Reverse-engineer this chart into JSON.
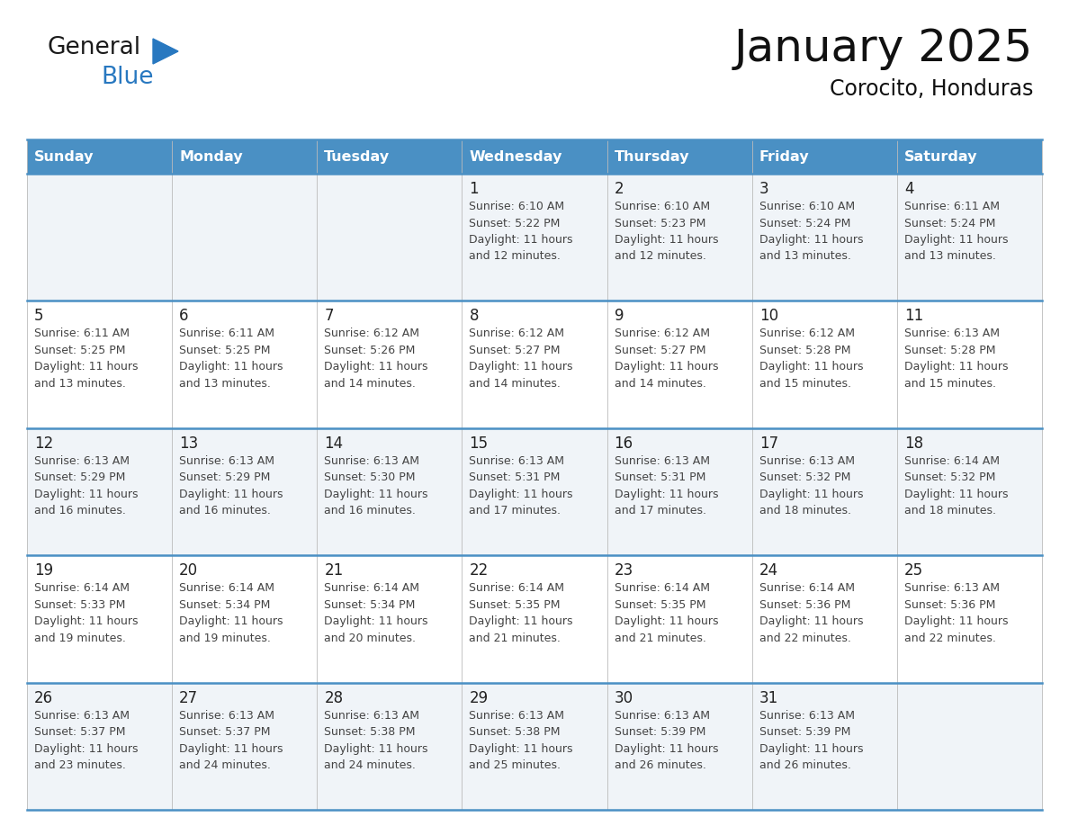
{
  "title": "January 2025",
  "subtitle": "Corocito, Honduras",
  "days_of_week": [
    "Sunday",
    "Monday",
    "Tuesday",
    "Wednesday",
    "Thursday",
    "Friday",
    "Saturday"
  ],
  "header_bg": "#4a90c4",
  "header_text": "#ffffff",
  "cell_bg_odd": "#f0f4f8",
  "cell_bg_even": "#ffffff",
  "border_color": "#4a90c4",
  "text_color": "#444444",
  "day_num_color": "#222222",
  "title_color": "#111111",
  "subtitle_color": "#111111",
  "weeks": [
    [
      {
        "day": null,
        "info": null
      },
      {
        "day": null,
        "info": null
      },
      {
        "day": null,
        "info": null
      },
      {
        "day": 1,
        "info": "Sunrise: 6:10 AM\nSunset: 5:22 PM\nDaylight: 11 hours\nand 12 minutes."
      },
      {
        "day": 2,
        "info": "Sunrise: 6:10 AM\nSunset: 5:23 PM\nDaylight: 11 hours\nand 12 minutes."
      },
      {
        "day": 3,
        "info": "Sunrise: 6:10 AM\nSunset: 5:24 PM\nDaylight: 11 hours\nand 13 minutes."
      },
      {
        "day": 4,
        "info": "Sunrise: 6:11 AM\nSunset: 5:24 PM\nDaylight: 11 hours\nand 13 minutes."
      }
    ],
    [
      {
        "day": 5,
        "info": "Sunrise: 6:11 AM\nSunset: 5:25 PM\nDaylight: 11 hours\nand 13 minutes."
      },
      {
        "day": 6,
        "info": "Sunrise: 6:11 AM\nSunset: 5:25 PM\nDaylight: 11 hours\nand 13 minutes."
      },
      {
        "day": 7,
        "info": "Sunrise: 6:12 AM\nSunset: 5:26 PM\nDaylight: 11 hours\nand 14 minutes."
      },
      {
        "day": 8,
        "info": "Sunrise: 6:12 AM\nSunset: 5:27 PM\nDaylight: 11 hours\nand 14 minutes."
      },
      {
        "day": 9,
        "info": "Sunrise: 6:12 AM\nSunset: 5:27 PM\nDaylight: 11 hours\nand 14 minutes."
      },
      {
        "day": 10,
        "info": "Sunrise: 6:12 AM\nSunset: 5:28 PM\nDaylight: 11 hours\nand 15 minutes."
      },
      {
        "day": 11,
        "info": "Sunrise: 6:13 AM\nSunset: 5:28 PM\nDaylight: 11 hours\nand 15 minutes."
      }
    ],
    [
      {
        "day": 12,
        "info": "Sunrise: 6:13 AM\nSunset: 5:29 PM\nDaylight: 11 hours\nand 16 minutes."
      },
      {
        "day": 13,
        "info": "Sunrise: 6:13 AM\nSunset: 5:29 PM\nDaylight: 11 hours\nand 16 minutes."
      },
      {
        "day": 14,
        "info": "Sunrise: 6:13 AM\nSunset: 5:30 PM\nDaylight: 11 hours\nand 16 minutes."
      },
      {
        "day": 15,
        "info": "Sunrise: 6:13 AM\nSunset: 5:31 PM\nDaylight: 11 hours\nand 17 minutes."
      },
      {
        "day": 16,
        "info": "Sunrise: 6:13 AM\nSunset: 5:31 PM\nDaylight: 11 hours\nand 17 minutes."
      },
      {
        "day": 17,
        "info": "Sunrise: 6:13 AM\nSunset: 5:32 PM\nDaylight: 11 hours\nand 18 minutes."
      },
      {
        "day": 18,
        "info": "Sunrise: 6:14 AM\nSunset: 5:32 PM\nDaylight: 11 hours\nand 18 minutes."
      }
    ],
    [
      {
        "day": 19,
        "info": "Sunrise: 6:14 AM\nSunset: 5:33 PM\nDaylight: 11 hours\nand 19 minutes."
      },
      {
        "day": 20,
        "info": "Sunrise: 6:14 AM\nSunset: 5:34 PM\nDaylight: 11 hours\nand 19 minutes."
      },
      {
        "day": 21,
        "info": "Sunrise: 6:14 AM\nSunset: 5:34 PM\nDaylight: 11 hours\nand 20 minutes."
      },
      {
        "day": 22,
        "info": "Sunrise: 6:14 AM\nSunset: 5:35 PM\nDaylight: 11 hours\nand 21 minutes."
      },
      {
        "day": 23,
        "info": "Sunrise: 6:14 AM\nSunset: 5:35 PM\nDaylight: 11 hours\nand 21 minutes."
      },
      {
        "day": 24,
        "info": "Sunrise: 6:14 AM\nSunset: 5:36 PM\nDaylight: 11 hours\nand 22 minutes."
      },
      {
        "day": 25,
        "info": "Sunrise: 6:13 AM\nSunset: 5:36 PM\nDaylight: 11 hours\nand 22 minutes."
      }
    ],
    [
      {
        "day": 26,
        "info": "Sunrise: 6:13 AM\nSunset: 5:37 PM\nDaylight: 11 hours\nand 23 minutes."
      },
      {
        "day": 27,
        "info": "Sunrise: 6:13 AM\nSunset: 5:37 PM\nDaylight: 11 hours\nand 24 minutes."
      },
      {
        "day": 28,
        "info": "Sunrise: 6:13 AM\nSunset: 5:38 PM\nDaylight: 11 hours\nand 24 minutes."
      },
      {
        "day": 29,
        "info": "Sunrise: 6:13 AM\nSunset: 5:38 PM\nDaylight: 11 hours\nand 25 minutes."
      },
      {
        "day": 30,
        "info": "Sunrise: 6:13 AM\nSunset: 5:39 PM\nDaylight: 11 hours\nand 26 minutes."
      },
      {
        "day": 31,
        "info": "Sunrise: 6:13 AM\nSunset: 5:39 PM\nDaylight: 11 hours\nand 26 minutes."
      },
      {
        "day": null,
        "info": null
      }
    ]
  ],
  "logo_text1": "General",
  "logo_text2": "Blue",
  "logo_color1": "#1a1a1a",
  "logo_color2": "#2878c0",
  "logo_triangle_color": "#2878c0"
}
